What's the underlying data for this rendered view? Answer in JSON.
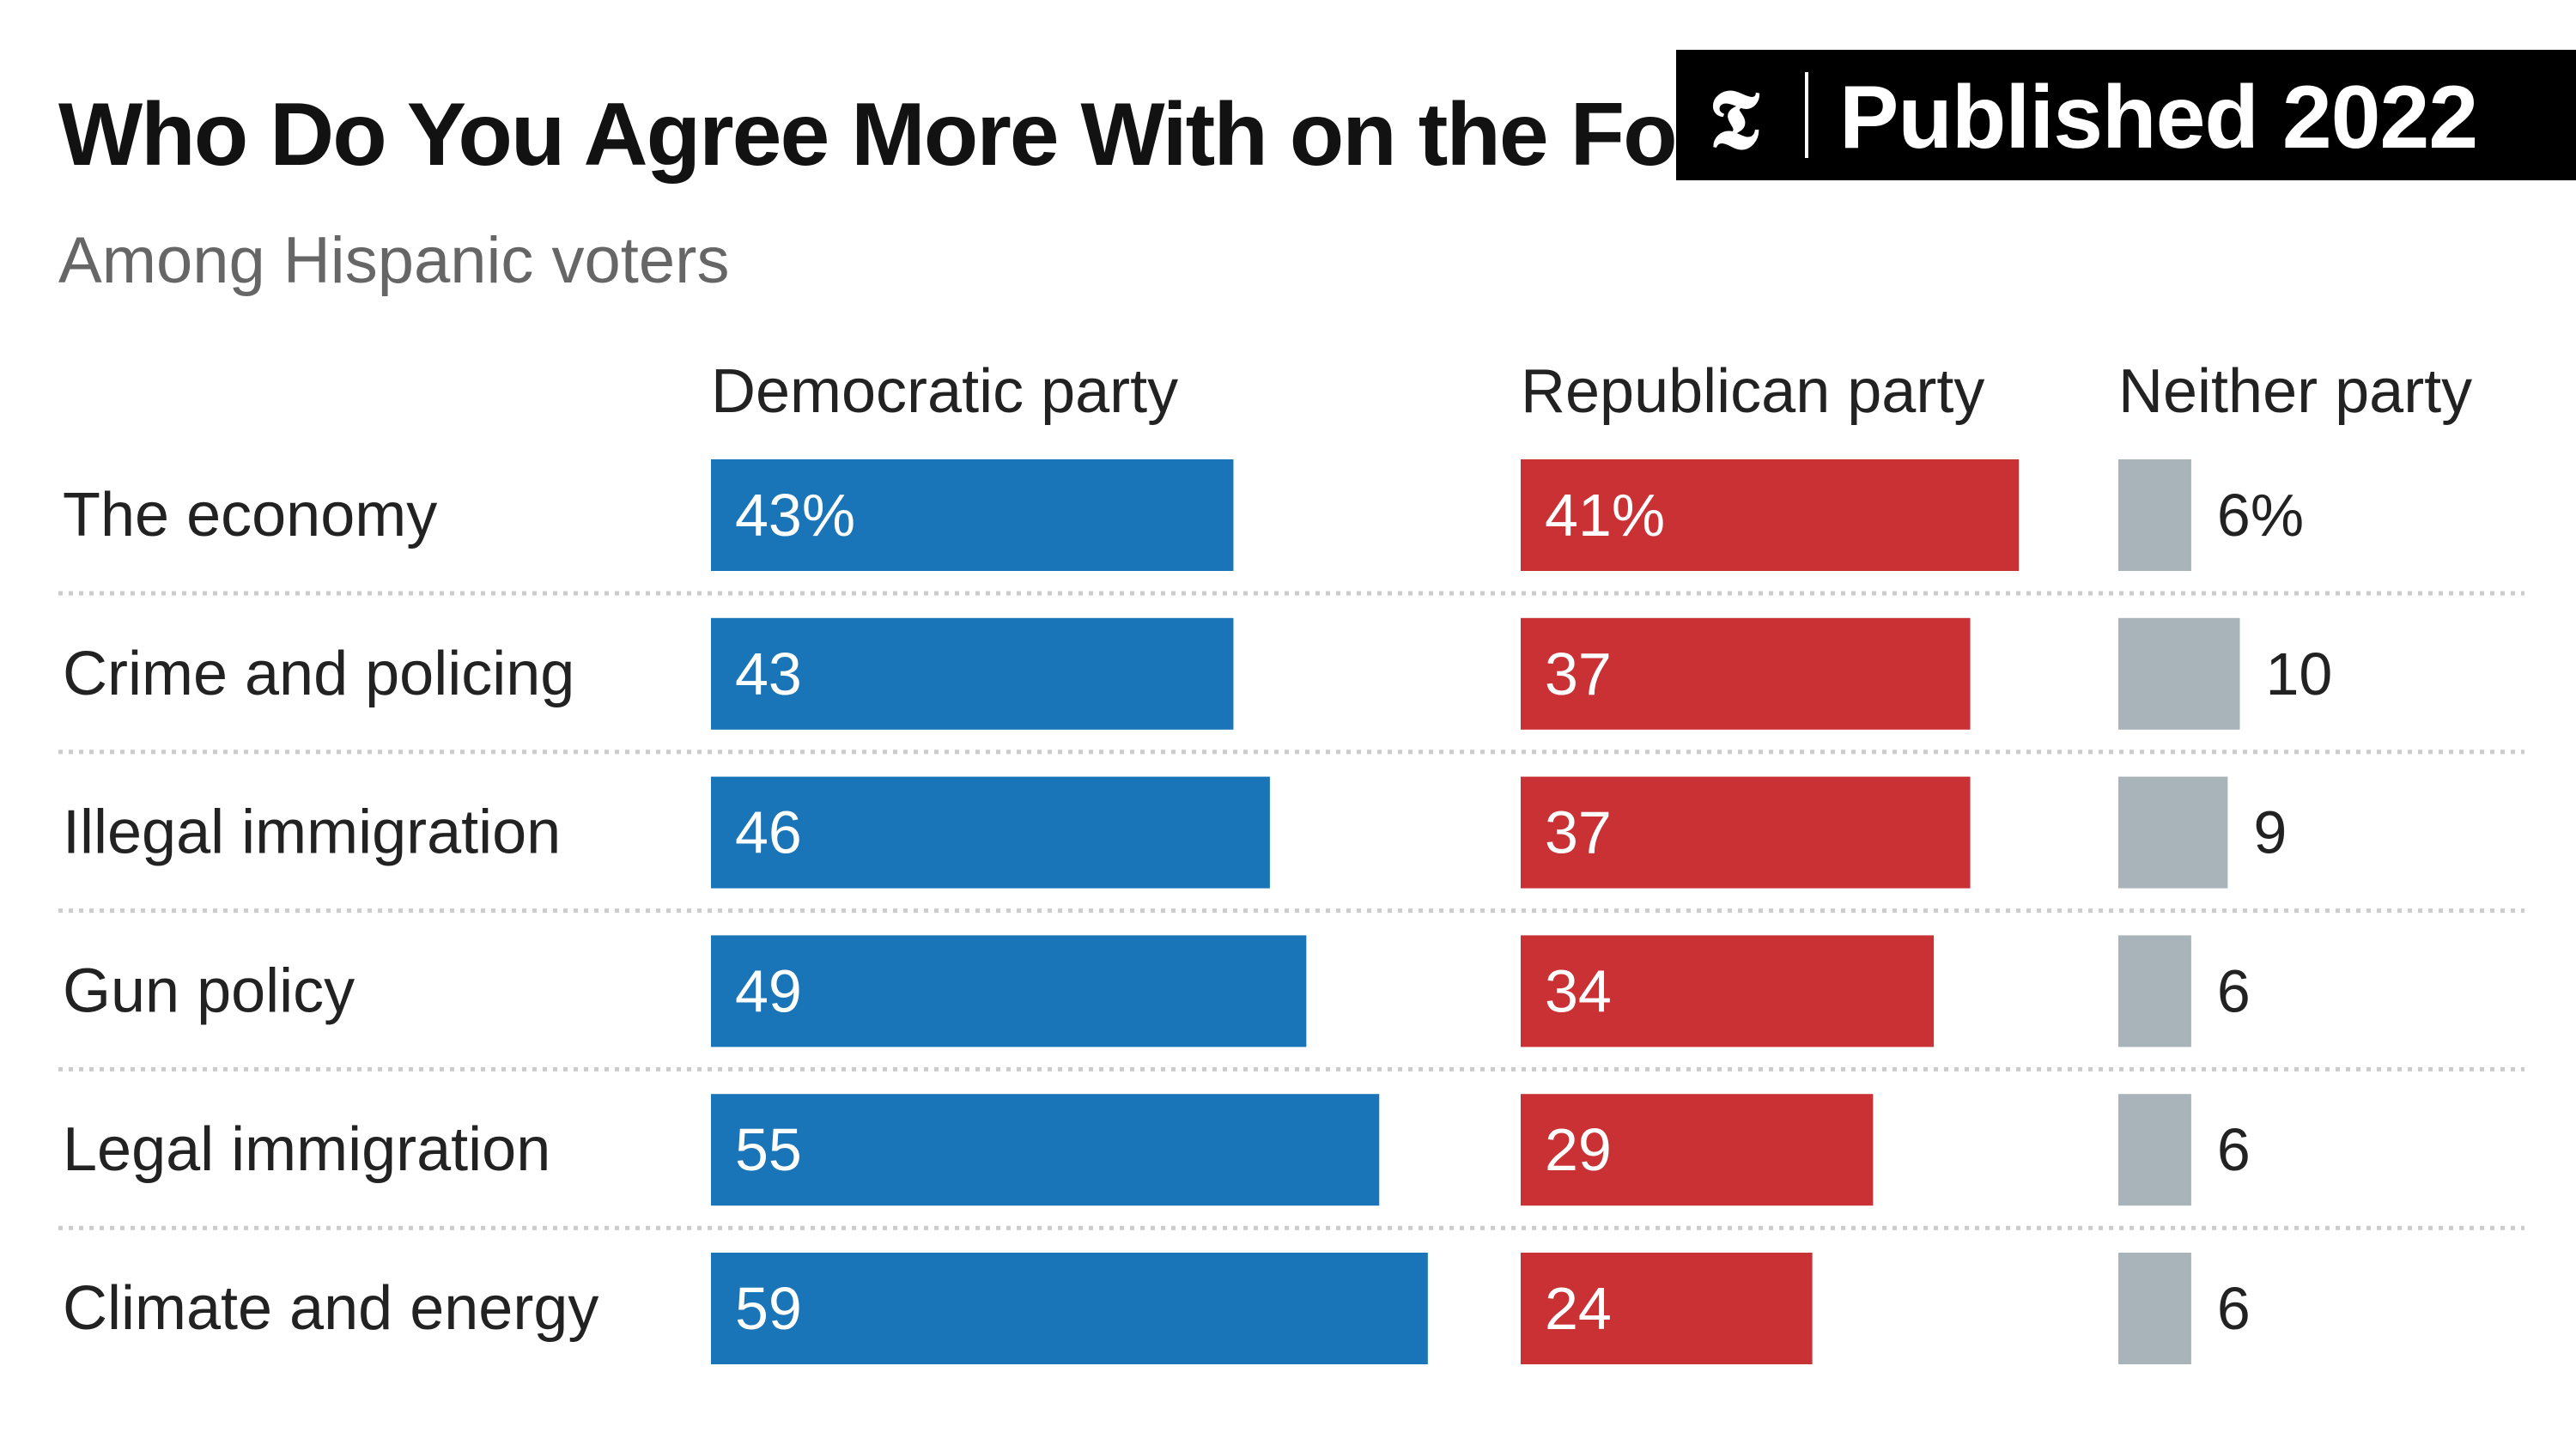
{
  "badge": {
    "logo": "𝕿",
    "text": "Published 2022"
  },
  "colors": {
    "democratic": "#1a74b8",
    "republican": "#c93135",
    "neither": "#a9b3ba",
    "separator": "#cccccc"
  },
  "chart_data": {
    "type": "bar",
    "title": "Who Do You Agree More With on the Following",
    "title_visible": "Who Do You Agree More With on the Fo",
    "subtitle": "Among Hispanic voters",
    "categories": [
      "The economy",
      "Crime and policing",
      "Illegal immigration",
      "Gun policy",
      "Legal immigration",
      "Climate and energy"
    ],
    "series": [
      {
        "name": "Democratic party",
        "values": [
          43,
          43,
          46,
          49,
          55,
          59
        ],
        "labels": [
          "43%",
          "43",
          "46",
          "49",
          "55",
          "59"
        ]
      },
      {
        "name": "Republican party",
        "values": [
          41,
          37,
          37,
          34,
          29,
          24
        ],
        "labels": [
          "41%",
          "37",
          "37",
          "34",
          "29",
          "24"
        ]
      },
      {
        "name": "Neither party",
        "values": [
          6,
          10,
          9,
          6,
          6,
          6
        ],
        "labels": [
          "6%",
          "10",
          "9",
          "6",
          "6",
          "6"
        ]
      }
    ],
    "unit": "%"
  }
}
